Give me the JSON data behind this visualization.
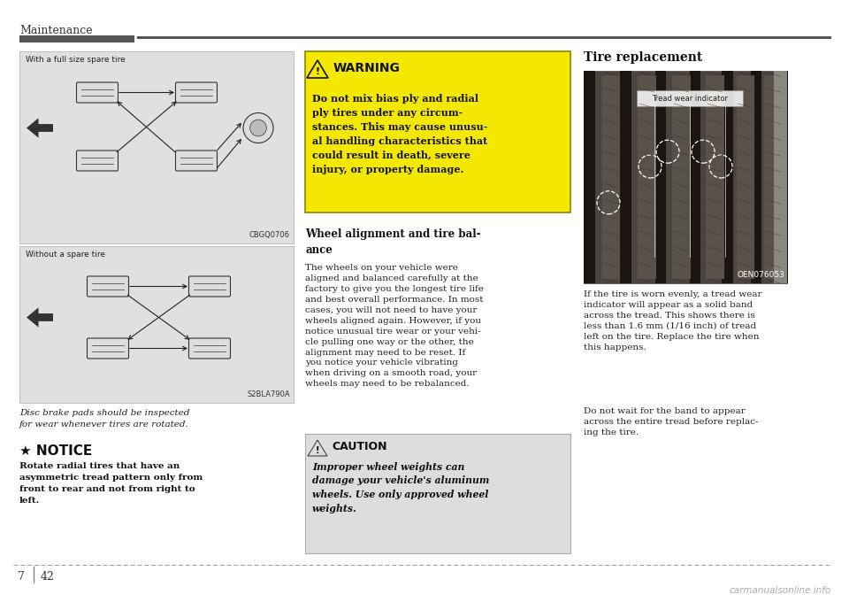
{
  "page_title": "Maintenance",
  "page_number_left": "7",
  "page_number_right": "42",
  "bg_color": "#ffffff",
  "diagram1_label": "With a full size spare tire",
  "diagram1_code": "CBGQ0706",
  "diagram2_label": "Without a spare tire",
  "diagram2_code": "S2BLA790A",
  "caption_italic": "Disc brake pads should be inspected\nfor wear whenever tires are rotated.",
  "notice_star": "★ NOTICE",
  "notice_text": "Rotate radial tires that have an\nasymmetric tread pattern only from\nfront to rear and not from right to\nleft.",
  "warning_title": "WARNING",
  "warning_text": "Do not mix bias ply and radial\nply tires under any circum-\nstances. This may cause unusu-\nal handling characteristics that\ncould result in death, severe\ninjury, or property damage.",
  "wheel_align_title_line1": "Wheel alignment and tire bal-",
  "wheel_align_title_line2": "ance",
  "wheel_align_text": "The wheels on your vehicle were\naligned and balanced carefully at the\nfactory to give you the longest tire life\nand best overall performance. In most\ncases, you will not need to have your\nwheels aligned again. However, if you\nnotice unusual tire wear or your vehi-\ncle pulling one way or the other, the\nalignment may need to be reset. If\nyou notice your vehicle vibrating\nwhen driving on a smooth road, your\nwheels may need to be rebalanced.",
  "caution_title": "CAUTION",
  "caution_text": "Improper wheel weights can\ndamage your vehicle's aluminum\nwheels. Use only approved wheel\nweights.",
  "tire_replace_title": "Tire replacement",
  "tire_image_code": "OEN076053",
  "tread_wear_label": "Tread wear indicator",
  "tire_replace_text1": "If the tire is worn evenly, a tread wear\nindicator will appear as a solid band\nacross the tread. This shows there is\nless than 1.6 mm (1/16 inch) of tread\nleft on the tire. Replace the tire when\nthis happens.",
  "tire_replace_text2": "Do not wait for the band to appear\nacross the entire tread before replac-\ning the tire.",
  "footer_watermark": "carmanualsonline.info"
}
